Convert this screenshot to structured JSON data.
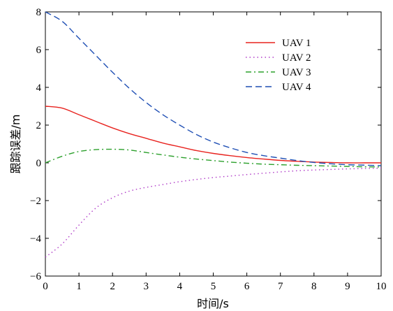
{
  "chart_data": {
    "type": "line",
    "xlabel": "时间/s",
    "ylabel": "跟踪误差/m",
    "xlim": [
      0,
      10
    ],
    "ylim": [
      -6,
      8
    ],
    "xticks": [
      "0",
      "1",
      "2",
      "3",
      "4",
      "5",
      "6",
      "7",
      "8",
      "9",
      "10"
    ],
    "yticks": [
      "−6",
      "−4",
      "−2",
      "0",
      "2",
      "4",
      "6",
      "8"
    ],
    "legend_position": "top-right",
    "x": [
      0,
      0.5,
      1,
      1.5,
      2,
      2.5,
      3,
      3.5,
      4,
      4.5,
      5,
      5.5,
      6,
      6.5,
      7,
      7.5,
      8,
      8.5,
      9,
      9.5,
      10
    ],
    "series": [
      {
        "name": "UAV 1",
        "color": "#e8231f",
        "style": "solid",
        "values": [
          3.0,
          2.9,
          2.55,
          2.2,
          1.85,
          1.55,
          1.3,
          1.05,
          0.85,
          0.65,
          0.5,
          0.38,
          0.28,
          0.2,
          0.13,
          0.08,
          0.04,
          0.02,
          0.0,
          0.0,
          0.0
        ]
      },
      {
        "name": "UAV 2",
        "color": "#b03cc8",
        "style": "dotted",
        "values": [
          -5.0,
          -4.3,
          -3.3,
          -2.4,
          -1.85,
          -1.5,
          -1.3,
          -1.15,
          -1.0,
          -0.88,
          -0.78,
          -0.7,
          -0.62,
          -0.55,
          -0.48,
          -0.42,
          -0.38,
          -0.35,
          -0.32,
          -0.3,
          -0.28
        ]
      },
      {
        "name": "UAV 3",
        "color": "#2ca02c",
        "style": "dashdot",
        "values": [
          0.0,
          0.35,
          0.6,
          0.7,
          0.72,
          0.68,
          0.55,
          0.42,
          0.3,
          0.2,
          0.12,
          0.04,
          -0.02,
          -0.07,
          -0.1,
          -0.13,
          -0.15,
          -0.17,
          -0.19,
          -0.21,
          -0.22
        ]
      },
      {
        "name": "UAV 4",
        "color": "#1f4fb4",
        "style": "dashed",
        "values": [
          8.0,
          7.5,
          6.6,
          5.7,
          4.8,
          3.95,
          3.2,
          2.55,
          2.0,
          1.5,
          1.1,
          0.8,
          0.55,
          0.38,
          0.25,
          0.12,
          0.02,
          -0.05,
          -0.1,
          -0.12,
          -0.15
        ]
      }
    ]
  }
}
